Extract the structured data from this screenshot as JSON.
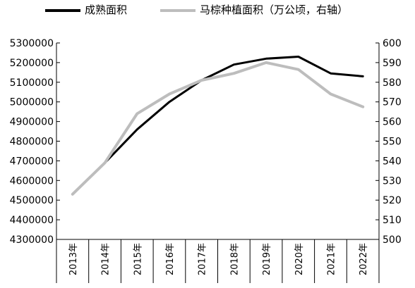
{
  "chart_data": {
    "type": "line",
    "categories": [
      "2013年",
      "2014年",
      "2015年",
      "2016年",
      "2017年",
      "2018年",
      "2019年",
      "2020年",
      "2021年",
      "2022年"
    ],
    "series": [
      {
        "name": "成熟面积",
        "axis": "left",
        "color": "#000000",
        "values": [
          4530000,
          4690000,
          4860000,
          5000000,
          5110000,
          5190000,
          5220000,
          5230000,
          5145000,
          5130000
        ]
      },
      {
        "name": "马棕种植面积（万公顷，右轴）",
        "axis": "right",
        "color": "#bdbdbd",
        "values": [
          523,
          539,
          564,
          574,
          581,
          584.5,
          590,
          586.5,
          574,
          567.5
        ]
      }
    ],
    "left_axis": {
      "ylim": [
        4300000,
        5300000
      ],
      "ticks": [
        "4300000",
        "4400000",
        "4500000",
        "4600000",
        "4700000",
        "4800000",
        "4900000",
        "5000000",
        "5100000",
        "5200000",
        "5300000"
      ]
    },
    "right_axis": {
      "ylim": [
        500,
        600
      ],
      "ticks": [
        "500",
        "510",
        "520",
        "530",
        "540",
        "550",
        "560",
        "570",
        "580",
        "590",
        "600"
      ]
    },
    "legend": "top"
  }
}
